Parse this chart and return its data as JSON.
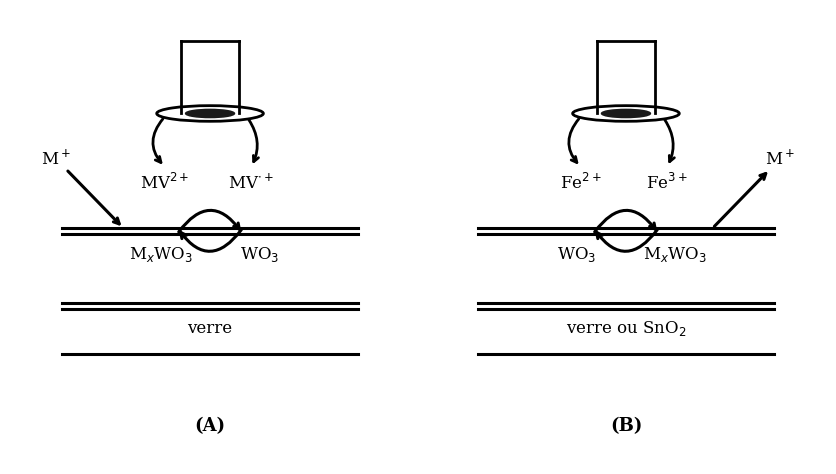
{
  "fig_width": 8.36,
  "fig_height": 4.74,
  "dpi": 100,
  "background": "#ffffff",
  "panel_A": {
    "label": "(A)",
    "substrate_label": "verre",
    "left_ion": "MV$^{2+}$",
    "right_ion": "MV$^{\\cdot+}$",
    "left_film": "M$_x$WO$_3$",
    "right_film": "WO$_3$",
    "ext_ion": "M$^+$",
    "ext_ion_side": "left"
  },
  "panel_B": {
    "label": "(B)",
    "substrate_label": "verre ou SnO$_2$",
    "left_ion": "Fe$^{2+}$",
    "right_ion": "Fe$^{3+}$",
    "left_film": "WO$_3$",
    "right_film": "M$_x$WO$_3$",
    "ext_ion": "M$^+$",
    "ext_ion_side": "right"
  }
}
